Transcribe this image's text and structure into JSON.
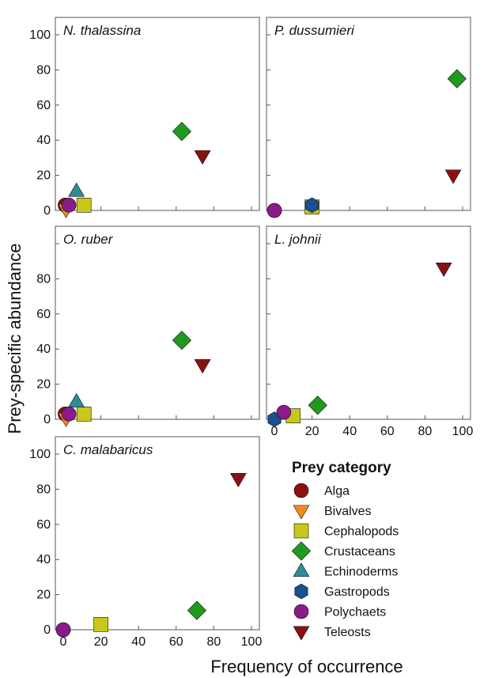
{
  "figure": {
    "ylabel": "Prey-specific abundance",
    "xlabel": "Frequency of occurrence"
  },
  "legend": {
    "title": "Prey category"
  },
  "categories": [
    {
      "name": "Alga",
      "color": "#8b1010",
      "marker": "circle"
    },
    {
      "name": "Bivalves",
      "color": "#f28a1e",
      "marker": "triangle-down"
    },
    {
      "name": "Cephalopods",
      "color": "#c8c81a",
      "marker": "square"
    },
    {
      "name": "Crustaceans",
      "color": "#1f9a1f",
      "marker": "diamond"
    },
    {
      "name": "Echinoderms",
      "color": "#2e8b9a",
      "marker": "triangle-up"
    },
    {
      "name": "Gastropods",
      "color": "#1b4f8f",
      "marker": "hexagon"
    },
    {
      "name": "Polychaets",
      "color": "#8b1a8b",
      "marker": "circle"
    },
    {
      "name": "Teleosts",
      "color": "#8b1010",
      "marker": "triangle-down"
    }
  ],
  "chart_data": [
    {
      "type": "scatter",
      "title": "N. thalassina",
      "xlim": [
        0,
        100
      ],
      "ylim": [
        0,
        100
      ],
      "x_ticks": [],
      "y_ticks": [
        0,
        20,
        40,
        60,
        80,
        100
      ],
      "points": [
        {
          "category": "Alga",
          "x": 1,
          "y": 3
        },
        {
          "category": "Bivalves",
          "x": 1.5,
          "y": 0.5
        },
        {
          "category": "Cephalopods",
          "x": 11,
          "y": 3
        },
        {
          "category": "Crustaceans",
          "x": 63,
          "y": 45
        },
        {
          "category": "Echinoderms",
          "x": 7,
          "y": 11
        },
        {
          "category": "Polychaets",
          "x": 3,
          "y": 3
        },
        {
          "category": "Teleosts",
          "x": 74,
          "y": 31
        }
      ]
    },
    {
      "type": "scatter",
      "title": "P. dussumieri",
      "xlim": [
        0,
        100
      ],
      "ylim": [
        0,
        100
      ],
      "x_ticks": [],
      "y_ticks": [],
      "points": [
        {
          "category": "Alga",
          "x": 0,
          "y": 0
        },
        {
          "category": "Cephalopods",
          "x": 20,
          "y": 2
        },
        {
          "category": "Crustaceans",
          "x": 97,
          "y": 75
        },
        {
          "category": "Gastropods",
          "x": 20,
          "y": 3
        },
        {
          "category": "Polychaets",
          "x": 0,
          "y": 0
        },
        {
          "category": "Teleosts",
          "x": 95,
          "y": 20
        }
      ]
    },
    {
      "type": "scatter",
      "title": "O. ruber",
      "xlim": [
        0,
        100
      ],
      "ylim": [
        0,
        100
      ],
      "x_ticks": [],
      "y_ticks": [
        0,
        20,
        40,
        60,
        80
      ],
      "points": [
        {
          "category": "Alga",
          "x": 1,
          "y": 3
        },
        {
          "category": "Bivalves",
          "x": 1.5,
          "y": 0.5
        },
        {
          "category": "Cephalopods",
          "x": 11,
          "y": 3
        },
        {
          "category": "Crustaceans",
          "x": 63,
          "y": 45
        },
        {
          "category": "Echinoderms",
          "x": 7,
          "y": 10
        },
        {
          "category": "Polychaets",
          "x": 3,
          "y": 3
        },
        {
          "category": "Teleosts",
          "x": 74,
          "y": 31
        }
      ]
    },
    {
      "type": "scatter",
      "title": "L. johnii",
      "xlim": [
        0,
        100
      ],
      "ylim": [
        0,
        100
      ],
      "x_ticks": [
        0,
        20,
        40,
        60,
        80,
        100
      ],
      "y_ticks": [],
      "points": [
        {
          "category": "Cephalopods",
          "x": 10,
          "y": 2
        },
        {
          "category": "Crustaceans",
          "x": 23,
          "y": 8
        },
        {
          "category": "Gastropods",
          "x": 0,
          "y": 0
        },
        {
          "category": "Polychaets",
          "x": 5,
          "y": 4
        },
        {
          "category": "Teleosts",
          "x": 90,
          "y": 86
        }
      ]
    },
    {
      "type": "scatter",
      "title": "C. malabaricus",
      "xlim": [
        0,
        100
      ],
      "ylim": [
        0,
        100
      ],
      "x_ticks": [
        0,
        20,
        40,
        60,
        80,
        100
      ],
      "y_ticks": [
        0,
        20,
        40,
        60,
        80,
        100
      ],
      "points": [
        {
          "category": "Alga",
          "x": 0,
          "y": 0
        },
        {
          "category": "Cephalopods",
          "x": 20,
          "y": 3
        },
        {
          "category": "Crustaceans",
          "x": 71,
          "y": 11
        },
        {
          "category": "Polychaets",
          "x": 0,
          "y": 0
        },
        {
          "category": "Teleosts",
          "x": 93,
          "y": 86
        }
      ]
    }
  ]
}
